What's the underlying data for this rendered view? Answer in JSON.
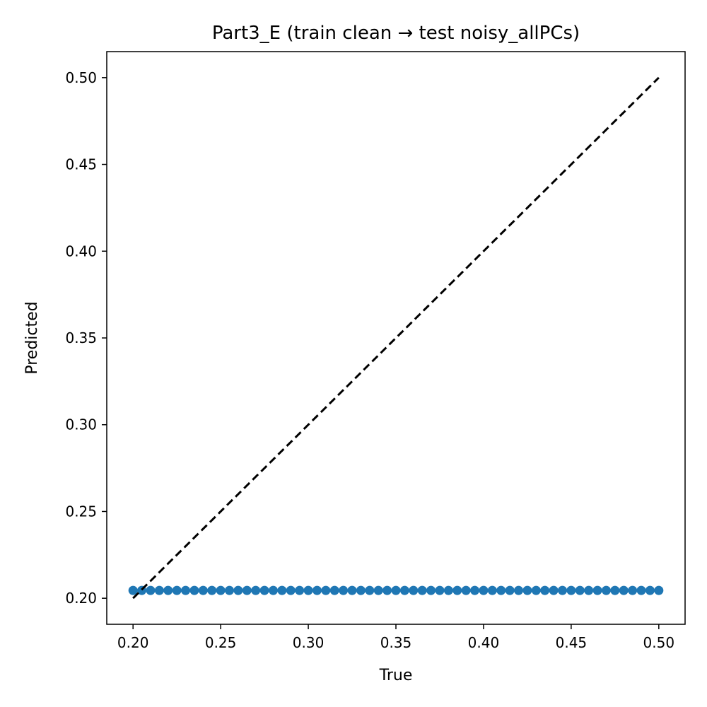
{
  "chart_data": {
    "type": "scatter",
    "title": "Part3_E (train clean → test noisy_allPCs)",
    "xlabel": "True",
    "ylabel": "Predicted",
    "xlim": [
      0.185,
      0.515
    ],
    "ylim": [
      0.185,
      0.515
    ],
    "xticks": [
      0.2,
      0.25,
      0.3,
      0.35,
      0.4,
      0.45,
      0.5
    ],
    "yticks": [
      0.2,
      0.25,
      0.3,
      0.35,
      0.4,
      0.45,
      0.5
    ],
    "xtick_labels": [
      "0.20",
      "0.25",
      "0.30",
      "0.35",
      "0.40",
      "0.45",
      "0.50"
    ],
    "ytick_labels": [
      "0.20",
      "0.25",
      "0.30",
      "0.35",
      "0.40",
      "0.45",
      "0.50"
    ],
    "grid": false,
    "series": [
      {
        "color": "#1f77b4",
        "x": [
          0.2,
          0.205,
          0.21,
          0.215,
          0.22,
          0.225,
          0.23,
          0.235,
          0.24,
          0.245,
          0.25,
          0.255,
          0.26,
          0.265,
          0.27,
          0.275,
          0.28,
          0.285,
          0.29,
          0.295,
          0.3,
          0.305,
          0.31,
          0.315,
          0.32,
          0.325,
          0.33,
          0.335,
          0.34,
          0.345,
          0.35,
          0.355,
          0.36,
          0.365,
          0.37,
          0.375,
          0.38,
          0.385,
          0.39,
          0.395,
          0.4,
          0.405,
          0.41,
          0.415,
          0.42,
          0.425,
          0.43,
          0.435,
          0.44,
          0.445,
          0.45,
          0.455,
          0.46,
          0.465,
          0.47,
          0.475,
          0.48,
          0.485,
          0.49,
          0.495,
          0.5
        ],
        "y": [
          0.2045,
          0.2045,
          0.2045,
          0.2045,
          0.2045,
          0.2045,
          0.2045,
          0.2045,
          0.2045,
          0.2045,
          0.2045,
          0.2045,
          0.2045,
          0.2045,
          0.2045,
          0.2045,
          0.2045,
          0.2045,
          0.2045,
          0.2045,
          0.2045,
          0.2045,
          0.2045,
          0.2045,
          0.2045,
          0.2045,
          0.2045,
          0.2045,
          0.2045,
          0.2045,
          0.2045,
          0.2045,
          0.2045,
          0.2045,
          0.2045,
          0.2045,
          0.2045,
          0.2045,
          0.2045,
          0.2045,
          0.2045,
          0.2045,
          0.2045,
          0.2045,
          0.2045,
          0.2045,
          0.2045,
          0.2045,
          0.2045,
          0.2045,
          0.2045,
          0.2045,
          0.2045,
          0.2045,
          0.2045,
          0.2045,
          0.2045,
          0.2045,
          0.2045,
          0.2045,
          0.2045
        ]
      }
    ],
    "reference_line": {
      "style": "dashed",
      "color": "#000000",
      "x": [
        0.2,
        0.5
      ],
      "y": [
        0.2,
        0.5
      ]
    }
  }
}
